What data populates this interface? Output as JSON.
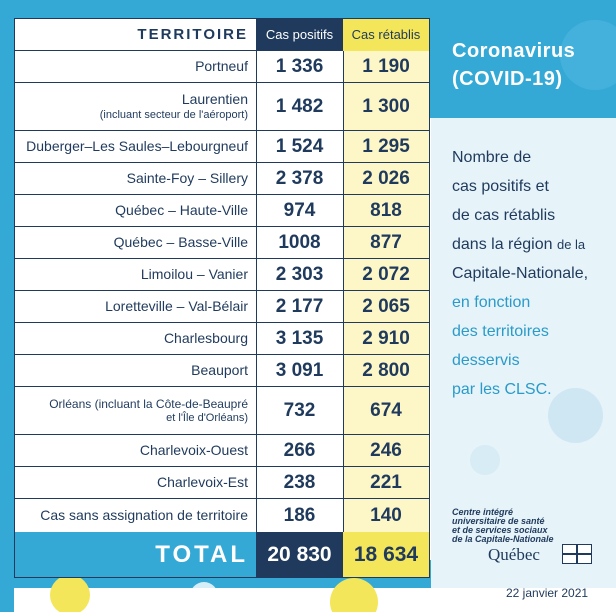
{
  "header": {
    "territoire": "TERRITOIRE",
    "cas_positifs": "Cas positifs",
    "cas_retablis": "Cas rétablis"
  },
  "rows": [
    {
      "name": "Portneuf",
      "sub": "",
      "positifs": "1 336",
      "retablis": "1 190"
    },
    {
      "name": "Laurentien",
      "sub": "(incluant secteur de l'aéroport)",
      "positifs": "1 482",
      "retablis": "1 300"
    },
    {
      "name": "Duberger–Les Saules–Lebourgneuf",
      "sub": "",
      "positifs": "1 524",
      "retablis": "1 295"
    },
    {
      "name": "Sainte-Foy – Sillery",
      "sub": "",
      "positifs": "2 378",
      "retablis": "2 026"
    },
    {
      "name": "Québec – Haute-Ville",
      "sub": "",
      "positifs": "974",
      "retablis": "818"
    },
    {
      "name": "Québec – Basse-Ville",
      "sub": "",
      "positifs": "1008",
      "retablis": "877"
    },
    {
      "name": "Limoilou – Vanier",
      "sub": "",
      "positifs": "2 303",
      "retablis": "2 072"
    },
    {
      "name": "Loretteville – Val-Bélair",
      "sub": "",
      "positifs": "2 177",
      "retablis": "2 065"
    },
    {
      "name": "Charlesbourg",
      "sub": "",
      "positifs": "3 135",
      "retablis": "2 910"
    },
    {
      "name": "Beauport",
      "sub": "",
      "positifs": "3 091",
      "retablis": "2 800"
    },
    {
      "name": "Orléans (incluant la Côte-de-Beaupré",
      "sub": "et l'Île d'Orléans)",
      "positifs": "732",
      "retablis": "674"
    },
    {
      "name": "Charlevoix-Ouest",
      "sub": "",
      "positifs": "266",
      "retablis": "246"
    },
    {
      "name": "Charlevoix-Est",
      "sub": "",
      "positifs": "238",
      "retablis": "221"
    },
    {
      "name": "Cas sans assignation de territoire",
      "sub": "",
      "positifs": "186",
      "retablis": "140"
    }
  ],
  "total": {
    "label": "TOTAL",
    "positifs": "20 830",
    "retablis": "18 634"
  },
  "panel": {
    "title_line1": "Coronavirus",
    "title_line2": "(COVID-19)",
    "desc_line1": "Nombre de",
    "desc_line2": "cas positifs et",
    "desc_line3": "de cas rétablis",
    "desc_line4": "dans la région",
    "desc_line4_small": "de la",
    "desc_line5": "Capitale-Nationale,",
    "desc_line6": "en fonction",
    "desc_line7": "des territoires",
    "desc_line8": "desservis",
    "desc_line9": "par les CLSC."
  },
  "logo": {
    "line1": "Centre intégré",
    "line2": "universitaire de santé",
    "line3": "et de services sociaux",
    "line4": "de la Capitale-Nationale",
    "quebec": "Québec"
  },
  "date": "22 janvier 2021",
  "colors": {
    "navy": "#1f3a5c",
    "sky": "#35a9d6",
    "yellow": "#f3e65a",
    "pale_yellow": "#fdf7c8"
  }
}
